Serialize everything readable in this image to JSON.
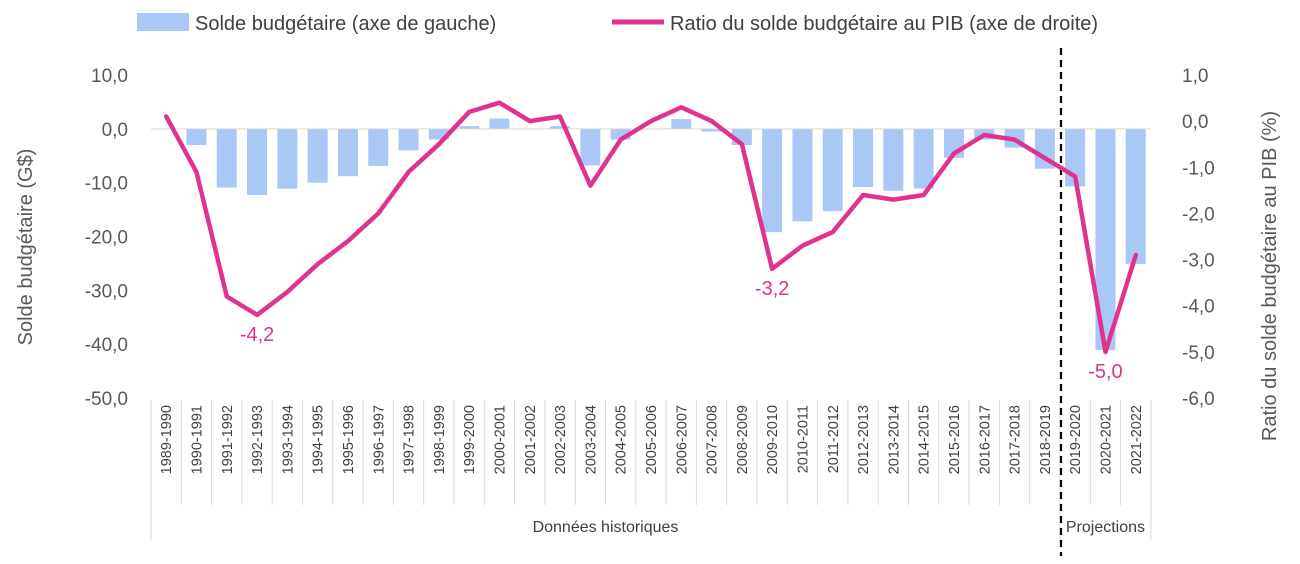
{
  "chart_data": {
    "type": "bar+line",
    "categories": [
      "1989-1990",
      "1990-1991",
      "1991-1992",
      "1992-1993",
      "1993-1994",
      "1994-1995",
      "1995-1996",
      "1996-1997",
      "1997-1998",
      "1998-1999",
      "1999-2000",
      "2000-2001",
      "2001-2002",
      "2002-2003",
      "2003-2004",
      "2004-2005",
      "2005-2006",
      "2006-2007",
      "2007-2008",
      "2008-2009",
      "2009-2010",
      "2010-2011",
      "2011-2012",
      "2012-2013",
      "2013-2014",
      "2014-2015",
      "2015-2016",
      "2016-2017",
      "2017-2018",
      "2018-2019",
      "2019-2020",
      "2020-2021",
      "2021-2022"
    ],
    "series": [
      {
        "name": "Solde budgétaire (axe de gauche)",
        "type": "bar",
        "axis": "left",
        "color": "#a9c8f5",
        "values": [
          0,
          -3.0,
          -10.9,
          -12.3,
          -11.1,
          -10.0,
          -8.8,
          -6.9,
          -4.0,
          -2.0,
          0.5,
          1.9,
          0.0,
          0.5,
          -6.8,
          -2.0,
          0.0,
          1.8,
          -0.5,
          -3.0,
          -19.2,
          -17.2,
          -15.3,
          -10.8,
          -11.5,
          -11.1,
          -5.4,
          -2.0,
          -3.5,
          -7.4,
          -10.7,
          -41.1,
          -25.1
        ]
      },
      {
        "name": "Ratio du solde budgétaire au PIB (axe de droite)",
        "type": "line",
        "axis": "right",
        "color": "#e0338f",
        "values": [
          0.1,
          -1.1,
          -3.8,
          -4.2,
          -3.7,
          -3.1,
          -2.6,
          -2.0,
          -1.1,
          -0.5,
          0.2,
          0.4,
          0.0,
          0.1,
          -1.4,
          -0.4,
          0.0,
          0.3,
          0.0,
          -0.5,
          -3.2,
          -2.7,
          -2.4,
          -1.6,
          -1.7,
          -1.6,
          -0.7,
          -0.3,
          -0.4,
          -0.8,
          -1.2,
          -5.0,
          -2.9
        ]
      }
    ],
    "left_axis": {
      "title": "Solde budgétaire (G$)",
      "ylim": [
        -50,
        10
      ],
      "ticks": [
        10,
        0,
        -10,
        -20,
        -30,
        -40,
        -50
      ],
      "tick_labels": [
        "10,0",
        "0,0",
        "-10,0",
        "-20,0",
        "-30,0",
        "-40,0",
        "-50,0"
      ]
    },
    "right_axis": {
      "title": "Ratio du solde budgétaire au PIB (%)",
      "ylim": [
        -6,
        1
      ],
      "ticks": [
        1,
        0,
        -1,
        -2,
        -3,
        -4,
        -5,
        -6
      ],
      "tick_labels": [
        "1,0",
        "0,0",
        "-1,0",
        "-2,0",
        "-3,0",
        "-4,0",
        "-5,0",
        "-6,0"
      ]
    },
    "data_labels": [
      {
        "category": "1992-1993",
        "text": "-4,2"
      },
      {
        "category": "2009-2010",
        "text": "-3,2"
      },
      {
        "category": "2020-2021",
        "text": "-5,0"
      }
    ],
    "groups": [
      {
        "label": "Données historiques",
        "from": "1989-1990",
        "to": "2018-2019"
      },
      {
        "label": "Projections",
        "from": "2019-2020",
        "to": "2021-2022"
      }
    ],
    "divider_after": "2018-2019",
    "grid": false,
    "legend_position": "top"
  }
}
